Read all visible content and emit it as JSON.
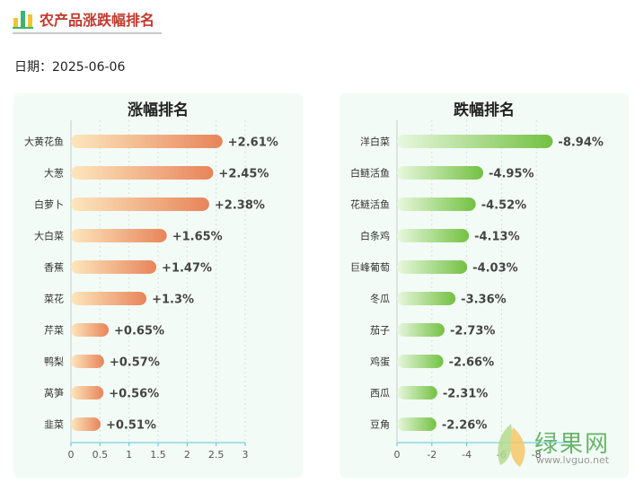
{
  "header": {
    "title": "农产品涨跌幅排名",
    "icon": "bar-chart-icon"
  },
  "date": {
    "label": "日期：",
    "value": "2025-06-06"
  },
  "chart_data": [
    {
      "type": "bar",
      "orientation": "horizontal",
      "title": "涨幅排名",
      "categories": [
        "大黄花鱼",
        "大葱",
        "白萝卜",
        "大白菜",
        "香蕉",
        "菜花",
        "芹菜",
        "鸭梨",
        "莴笋",
        "韭菜"
      ],
      "values": [
        2.61,
        2.45,
        2.38,
        1.65,
        1.47,
        1.3,
        0.65,
        0.57,
        0.56,
        0.51
      ],
      "labels": [
        "+2.61%",
        "+2.45%",
        "+2.38%",
        "+1.65%",
        "+1.47%",
        "+1.3%",
        "+0.65%",
        "+0.57%",
        "+0.56%",
        "+0.51%"
      ],
      "xlim": [
        0,
        3
      ],
      "xticks": [
        "0",
        "0.5",
        "1",
        "1.5",
        "2",
        "2.5",
        "3"
      ],
      "xtick_values": [
        0,
        0.5,
        1,
        1.5,
        2,
        2.5,
        3
      ],
      "grid": true,
      "colors": {
        "start": "#fde7bd",
        "end": "#e8845a"
      }
    },
    {
      "type": "bar",
      "orientation": "horizontal",
      "title": "跌幅排名",
      "categories": [
        "洋白菜",
        "白鲢活鱼",
        "花鲢活鱼",
        "白条鸡",
        "巨峰葡萄",
        "冬瓜",
        "茄子",
        "鸡蛋",
        "西瓜",
        "豆角"
      ],
      "values": [
        -8.94,
        -4.95,
        -4.52,
        -4.13,
        -4.03,
        -3.36,
        -2.73,
        -2.66,
        -2.31,
        -2.26
      ],
      "labels": [
        "-8.94%",
        "-4.95%",
        "-4.52%",
        "-4.13%",
        "-4.03%",
        "-3.36%",
        "-2.73%",
        "-2.66%",
        "-2.31%",
        "-2.26%"
      ],
      "xlim": [
        0,
        -10
      ],
      "xticks": [
        "0",
        "-2",
        "-4",
        "-6",
        "-8"
      ],
      "xtick_values": [
        0,
        -2,
        -4,
        -6,
        -8
      ],
      "grid": true,
      "colors": {
        "start": "#e9f8df",
        "end": "#73c142"
      }
    }
  ],
  "watermark": {
    "brand": "绿果网",
    "url": "www.lvguo.net"
  }
}
